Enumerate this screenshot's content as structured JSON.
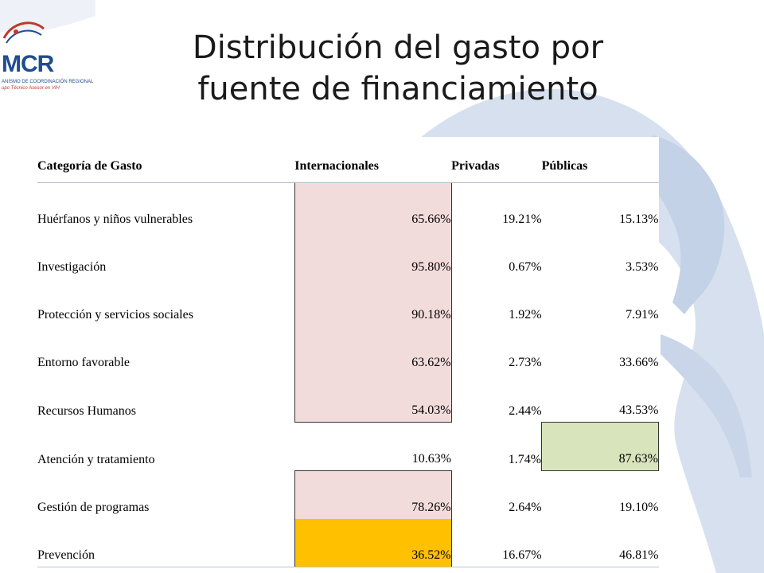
{
  "logo": {
    "text": "MCR",
    "subtitle": "ANISMO DE COORDINACIÓN REGIONAL",
    "tagline": "upo Técnico Asesor en VIH"
  },
  "title": {
    "line1": "Distribución del gasto por",
    "line2": "fuente de financiamiento"
  },
  "table": {
    "headers": [
      "Categoría de Gasto",
      "Internacionales",
      "Privadas",
      "Públicas"
    ],
    "rows": [
      {
        "category": "Huérfanos y niños vulnerables",
        "internacionales": "65.66%",
        "privadas": "19.21%",
        "publicas": "15.13%"
      },
      {
        "category": "Investigación",
        "internacionales": "95.80%",
        "privadas": "0.67%",
        "publicas": "3.53%"
      },
      {
        "category": "Protección y servicios sociales",
        "internacionales": "90.18%",
        "privadas": "1.92%",
        "publicas": "7.91%"
      },
      {
        "category": "Entorno favorable",
        "internacionales": "63.62%",
        "privadas": "2.73%",
        "publicas": "33.66%"
      },
      {
        "category": "Recursos Humanos",
        "internacionales": "54.03%",
        "privadas": "2.44%",
        "publicas": "43.53%"
      },
      {
        "category": "Atención y tratamiento",
        "internacionales": "10.63%",
        "privadas": "1.74%",
        "publicas": "87.63%"
      },
      {
        "category": "Gestión de programas",
        "internacionales": "78.26%",
        "privadas": "2.64%",
        "publicas": "19.10%"
      },
      {
        "category": "Prevención",
        "internacionales": "36.52%",
        "privadas": "16.67%",
        "publicas": "46.81%"
      }
    ]
  },
  "colors": {
    "highlight_pink": "#f2dcdb",
    "highlight_green": "#d7e4bc",
    "highlight_orange": "#ffc000",
    "map_blue": "#c5d3e6"
  }
}
